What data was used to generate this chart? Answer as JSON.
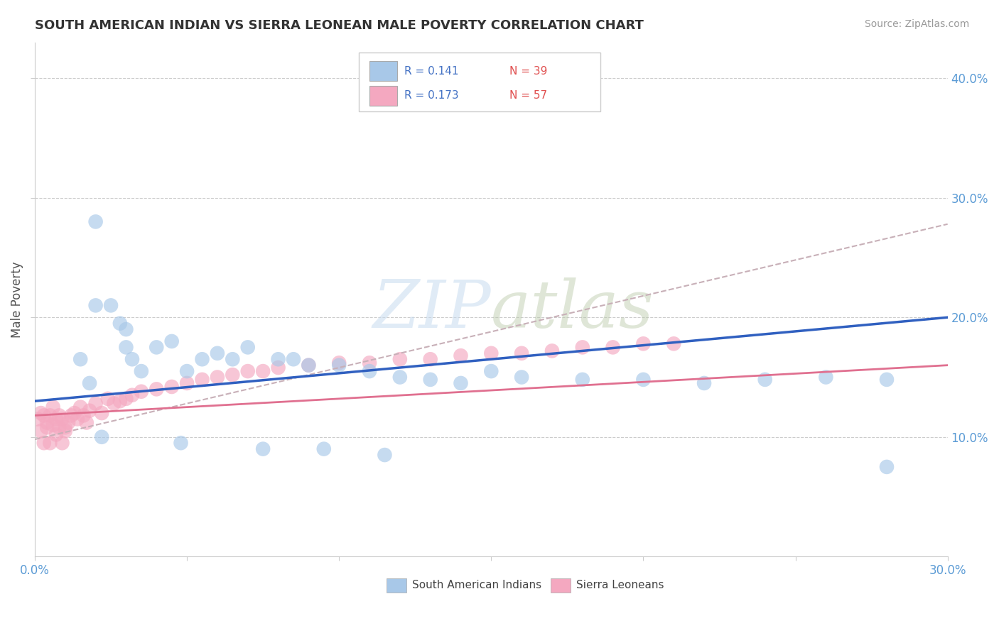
{
  "title": "SOUTH AMERICAN INDIAN VS SIERRA LEONEAN MALE POVERTY CORRELATION CHART",
  "source": "Source: ZipAtlas.com",
  "ylabel": "Male Poverty",
  "ytick_labels": [
    "10.0%",
    "20.0%",
    "30.0%",
    "40.0%"
  ],
  "ytick_values": [
    0.1,
    0.2,
    0.3,
    0.4
  ],
  "xlim": [
    0.0,
    0.3
  ],
  "ylim": [
    0.0,
    0.43
  ],
  "legend_r1": "R = 0.141",
  "legend_n1": "N = 39",
  "legend_r2": "R = 0.173",
  "legend_n2": "N = 57",
  "color_blue": "#A8C8E8",
  "color_pink": "#F4A8C0",
  "color_blue_line": "#3060C0",
  "color_pink_line": "#E07090",
  "color_dashed_line": "#C8B0B8",
  "blue_line_x": [
    0.0,
    0.3
  ],
  "blue_line_y": [
    0.13,
    0.2
  ],
  "pink_line_x": [
    0.0,
    0.3
  ],
  "pink_line_y": [
    0.118,
    0.16
  ],
  "dashed_line_x": [
    0.0,
    0.3
  ],
  "dashed_line_y": [
    0.098,
    0.278
  ],
  "south_american_x": [
    0.02,
    0.02,
    0.025,
    0.028,
    0.03,
    0.03,
    0.032,
    0.035,
    0.04,
    0.045,
    0.05,
    0.055,
    0.06,
    0.065,
    0.07,
    0.08,
    0.085,
    0.09,
    0.1,
    0.11,
    0.12,
    0.13,
    0.14,
    0.15,
    0.16,
    0.18,
    0.2,
    0.22,
    0.24,
    0.26,
    0.28,
    0.015,
    0.018,
    0.022,
    0.048,
    0.075,
    0.095,
    0.115,
    0.28
  ],
  "south_american_y": [
    0.21,
    0.28,
    0.21,
    0.195,
    0.19,
    0.175,
    0.165,
    0.155,
    0.175,
    0.18,
    0.155,
    0.165,
    0.17,
    0.165,
    0.175,
    0.165,
    0.165,
    0.16,
    0.16,
    0.155,
    0.15,
    0.148,
    0.145,
    0.155,
    0.15,
    0.148,
    0.148,
    0.145,
    0.148,
    0.15,
    0.148,
    0.165,
    0.145,
    0.1,
    0.095,
    0.09,
    0.09,
    0.085,
    0.075
  ],
  "sierra_leonean_x": [
    0.001,
    0.002,
    0.002,
    0.003,
    0.003,
    0.004,
    0.004,
    0.005,
    0.005,
    0.006,
    0.006,
    0.007,
    0.007,
    0.008,
    0.008,
    0.009,
    0.009,
    0.01,
    0.01,
    0.011,
    0.012,
    0.013,
    0.014,
    0.015,
    0.016,
    0.017,
    0.018,
    0.02,
    0.022,
    0.024,
    0.026,
    0.028,
    0.03,
    0.032,
    0.035,
    0.04,
    0.045,
    0.05,
    0.055,
    0.06,
    0.065,
    0.07,
    0.075,
    0.08,
    0.09,
    0.1,
    0.11,
    0.12,
    0.13,
    0.14,
    0.15,
    0.16,
    0.17,
    0.18,
    0.19,
    0.2,
    0.21
  ],
  "sierra_leonean_y": [
    0.115,
    0.12,
    0.105,
    0.118,
    0.095,
    0.112,
    0.108,
    0.118,
    0.095,
    0.125,
    0.11,
    0.115,
    0.102,
    0.118,
    0.108,
    0.115,
    0.095,
    0.108,
    0.105,
    0.112,
    0.118,
    0.12,
    0.115,
    0.125,
    0.118,
    0.112,
    0.122,
    0.128,
    0.12,
    0.132,
    0.128,
    0.13,
    0.132,
    0.135,
    0.138,
    0.14,
    0.142,
    0.145,
    0.148,
    0.15,
    0.152,
    0.155,
    0.155,
    0.158,
    0.16,
    0.162,
    0.162,
    0.165,
    0.165,
    0.168,
    0.17,
    0.17,
    0.172,
    0.175,
    0.175,
    0.178,
    0.178
  ]
}
